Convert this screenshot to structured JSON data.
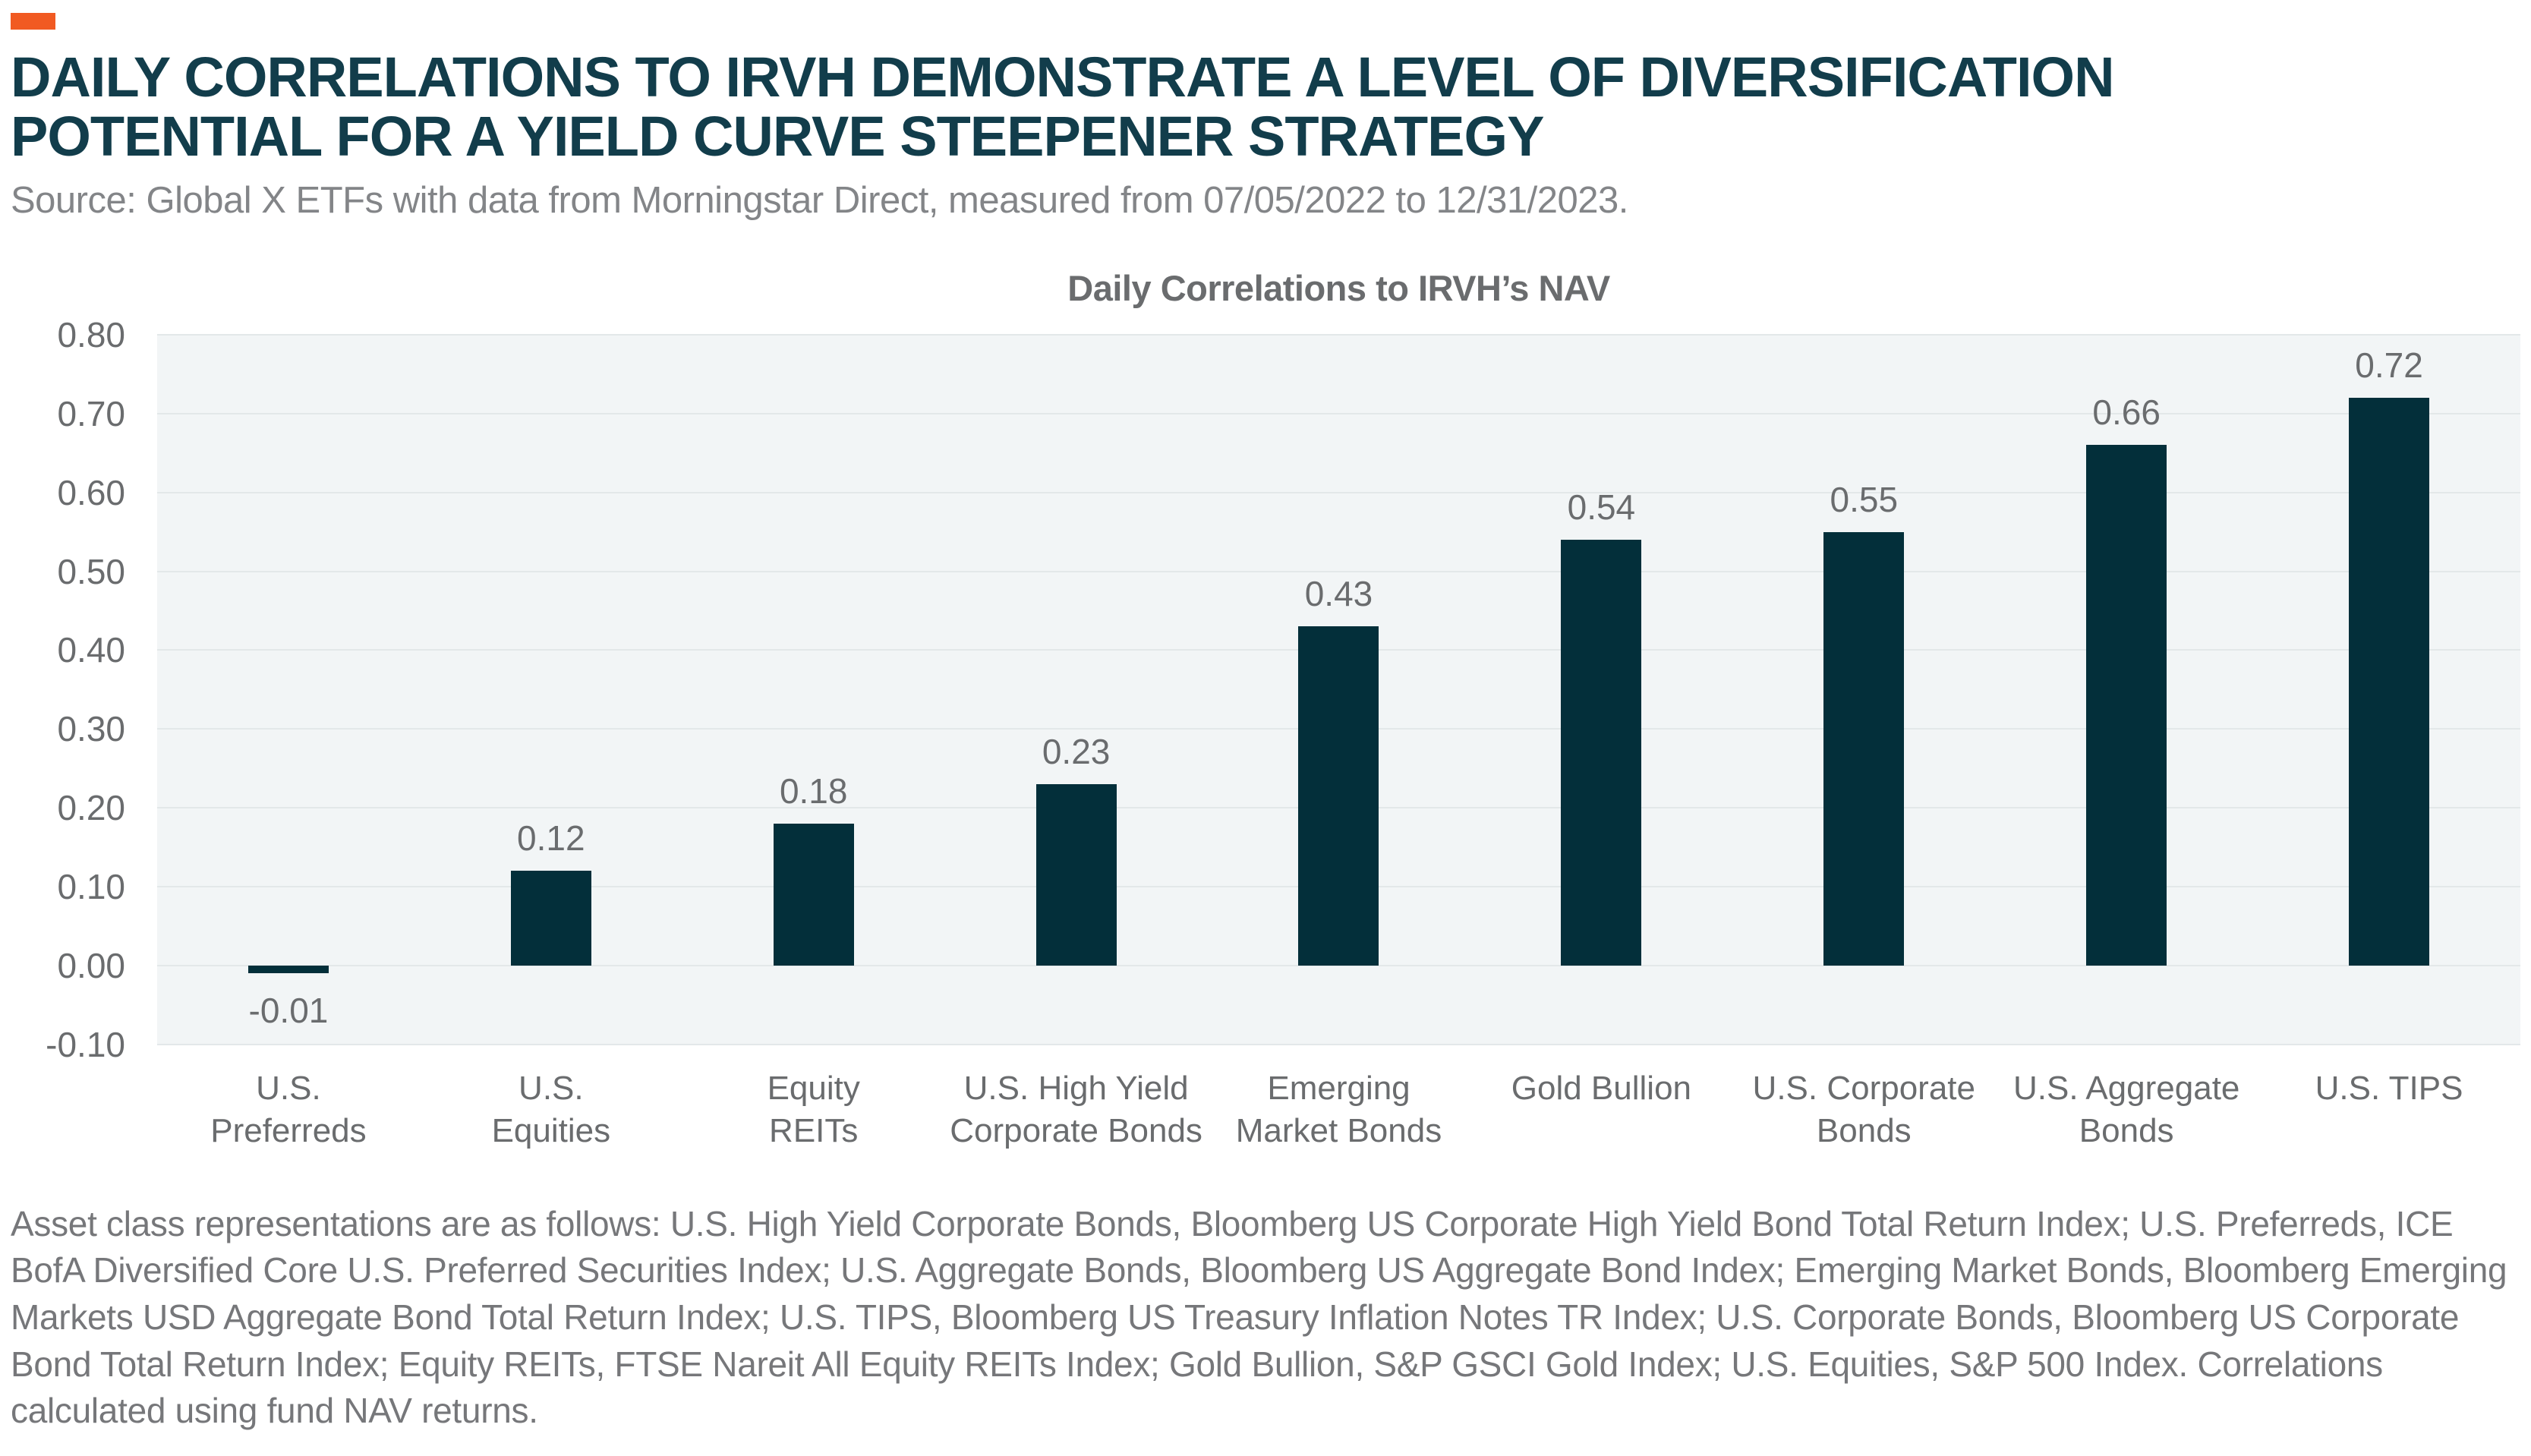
{
  "page": {
    "accent_color": "#F15A22",
    "title": "DAILY CORRELATIONS TO IRVH DEMONSTRATE A LEVEL OF DIVERSIFICATION POTENTIAL FOR A YIELD CURVE STEEPENER STRATEGY",
    "source_line": "Source: Global X ETFs with data from Morningstar Direct, measured from 07/05/2022 to 12/31/2023.",
    "footnote": "Asset class representations are as follows: U.S. High Yield Corporate Bonds, Bloomberg US Corporate High Yield Bond Total Return Index; U.S. Preferreds, ICE BofA Diversified Core U.S. Preferred Securities Index; U.S. Aggregate Bonds, Bloomberg US Aggregate Bond Index; Emerging Market Bonds, Bloomberg Emerging Markets USD Aggregate Bond Total Return Index; U.S. TIPS, Bloomberg US Treasury Inflation Notes TR Index; U.S. Corporate Bonds, Bloomberg US Corporate Bond Total Return Index; Equity REITs, FTSE Nareit All Equity REITs Index; Gold Bullion, S&P GSCI Gold Index; U.S. Equities, S&P 500 Index. Correlations calculated using fund NAV returns."
  },
  "chart_data": {
    "type": "bar",
    "title": "Daily Correlations to IRVH’s NAV",
    "categories": [
      "U.S. Preferreds",
      "U.S. Equities",
      "Equity REITs",
      "U.S. High Yield Corporate Bonds",
      "Emerging Market Bonds",
      "Gold Bullion",
      "U.S. Corporate Bonds",
      "U.S. Aggregate Bonds",
      "U.S. TIPS"
    ],
    "category_labels": [
      "U.S.\nPreferreds",
      "U.S.\nEquities",
      "Equity\nREITs",
      "U.S. High Yield\nCorporate Bonds",
      "Emerging\nMarket Bonds",
      "Gold Bullion",
      "U.S. Corporate\nBonds",
      "U.S. Aggregate\nBonds",
      "U.S. TIPS"
    ],
    "values": [
      -0.01,
      0.12,
      0.18,
      0.23,
      0.43,
      0.54,
      0.55,
      0.66,
      0.72
    ],
    "value_labels": [
      "-0.01",
      "0.12",
      "0.18",
      "0.23",
      "0.43",
      "0.54",
      "0.55",
      "0.66",
      "0.72"
    ],
    "xlabel": "",
    "ylabel": "",
    "ylim": [
      -0.1,
      0.8
    ],
    "yticks": [
      "0.80",
      "0.70",
      "0.60",
      "0.50",
      "0.40",
      "0.30",
      "0.20",
      "0.10",
      "0.00",
      "-0.10"
    ],
    "grid": "horizontal",
    "legend_position": "none",
    "bar_color": "#032F3A",
    "plot_bg_color": "#F2F5F6",
    "gridline_color": "#E3E8E9",
    "label_color": "#6A6C6E"
  }
}
